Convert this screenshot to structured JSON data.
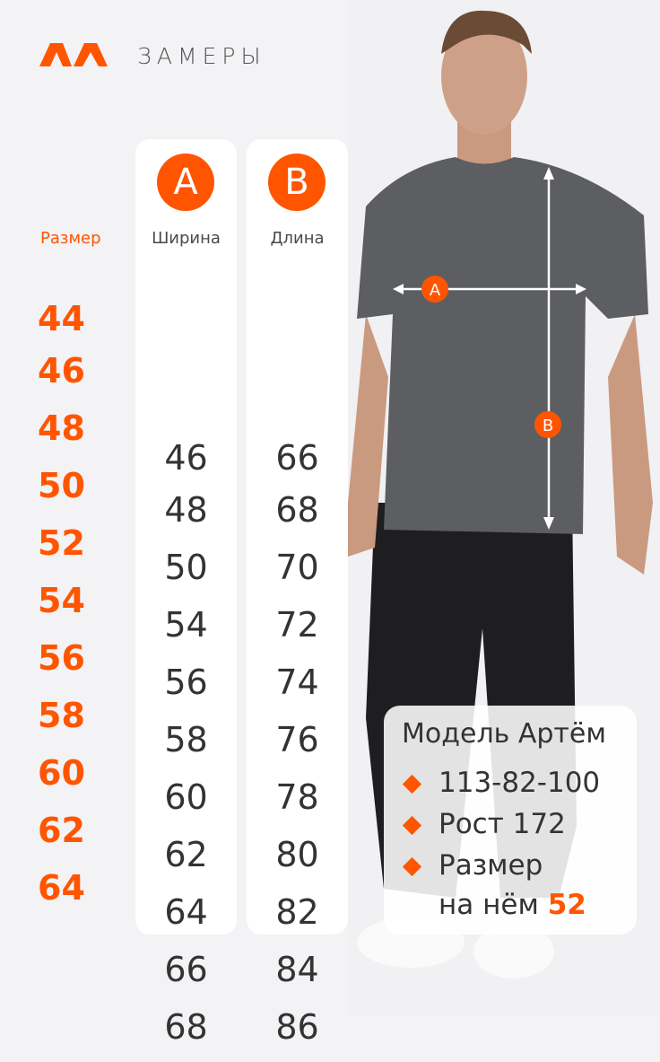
{
  "header": {
    "title": "ЗАМЕРЫ",
    "brand_color": "#ff5500",
    "logo_icon": "double-chevron-logo"
  },
  "table": {
    "size_header": "Размер",
    "columns": [
      {
        "badge": "A",
        "label": "Ширина"
      },
      {
        "badge": "B",
        "label": "Длина"
      }
    ],
    "sizes": [
      "44",
      "46",
      "48",
      "50",
      "52",
      "54",
      "56",
      "58",
      "60",
      "62",
      "64"
    ],
    "width": [
      "46",
      "48",
      "50",
      "54",
      "56",
      "58",
      "60",
      "62",
      "64",
      "66",
      "68"
    ],
    "length": [
      "66",
      "68",
      "70",
      "72",
      "74",
      "76",
      "78",
      "80",
      "82",
      "84",
      "86"
    ]
  },
  "photo": {
    "marker_a": "A",
    "marker_b": "B"
  },
  "model_card": {
    "title": "Модель Артём",
    "measurements": "113-82-100",
    "height": "Рост 172",
    "size_label": "Размер",
    "size_prefix": "на нём",
    "size_value": "52"
  }
}
